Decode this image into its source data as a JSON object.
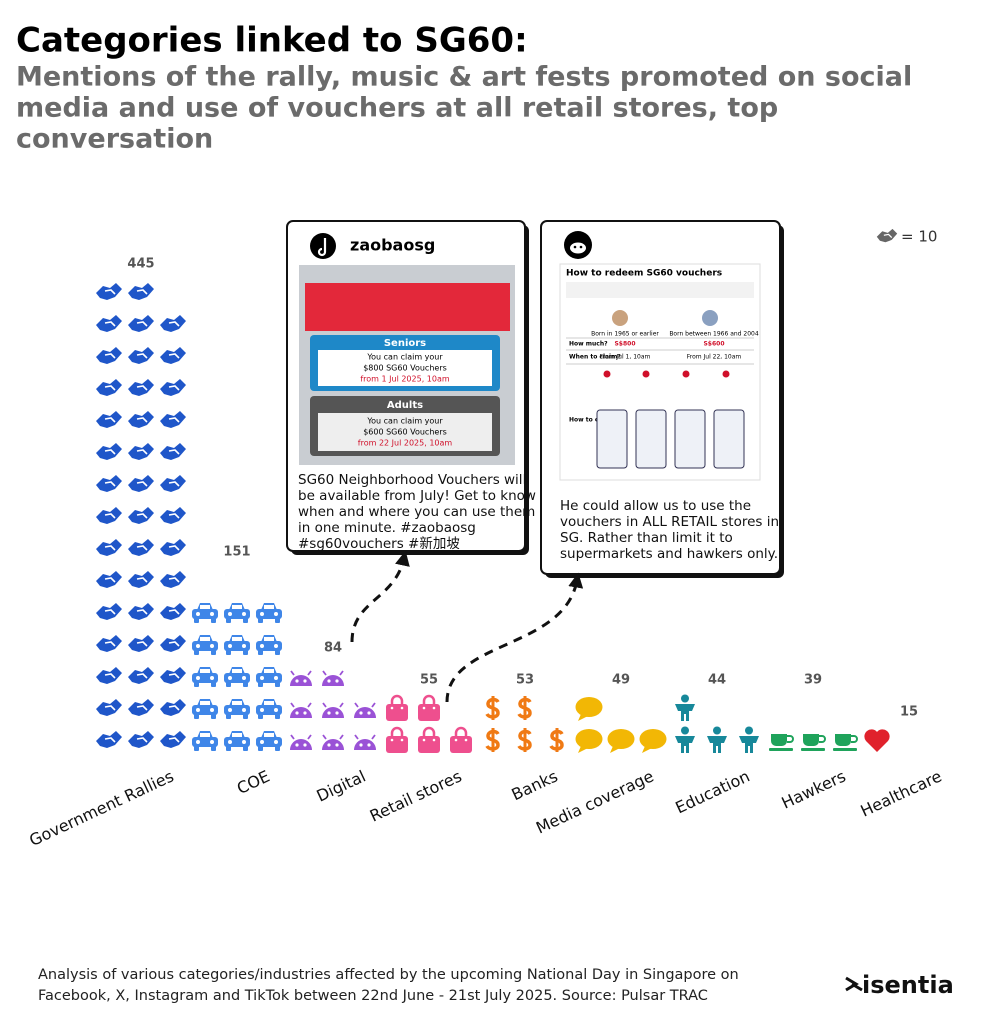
{
  "title": "Categories linked to SG60:",
  "subtitle_lines": [
    "Mentions of the rally, music & art fests promoted on social",
    "media and use of vouchers at all retail stores, top",
    "conversation"
  ],
  "chart_data": {
    "type": "pictogram",
    "categories": [
      "Government Rallies",
      "COE",
      "Digital",
      "Retail stores",
      "Banks",
      "Media coverage",
      "Education",
      "Hawkers",
      "Healthcare"
    ],
    "values": [
      445,
      151,
      84,
      55,
      53,
      49,
      44,
      39,
      15
    ],
    "colors": [
      "#1f56c9",
      "#3f86e8",
      "#9a52d6",
      "#ee4f8e",
      "#f07a14",
      "#f2b705",
      "#17889a",
      "#1fa35b",
      "#e0222c"
    ],
    "unit": {
      "value": 10,
      "label": "= 10"
    }
  },
  "posts": [
    {
      "handle": "zaobaosg",
      "image_texts": [
        "Seniors",
        "You can claim your",
        "$800 SG60 Vouchers",
        "from 1 Jul 2025, 10am",
        "Adults",
        "You can claim your",
        "$600 SG60 Vouchers",
        "from 22 Jul 2025, 10am"
      ],
      "caption_lines": [
        "SG60 Neighborhood Vouchers will",
        "be available from July! Get to know",
        "when and where you can use them",
        "in one minute. #zaobaosg",
        "#sg60vouchers #新加坡"
      ]
    },
    {
      "image_texts": [
        "How to redeem SG60 vouchers",
        "Born in 1965 or earlier",
        "Born between 1966 and 2004",
        "How much?",
        "S$800",
        "S$600",
        "When to claim?",
        "From Jul 1, 10am",
        "From Jul 22, 10am",
        "How to claim?"
      ],
      "caption_lines": [
        "He could allow us to use the",
        "vouchers in ALL RETAIL stores in",
        "SG. Rather than limit it to",
        "supermarkets and hawkers only."
      ]
    }
  ],
  "footer_lines": [
    "Analysis of various categories/industries affected by the upcoming National Day in Singapore on",
    "Facebook, X, Instagram and TikTok between 22nd June - 21st July 2025. Source: Pulsar TRAC"
  ],
  "logo": "isentia"
}
